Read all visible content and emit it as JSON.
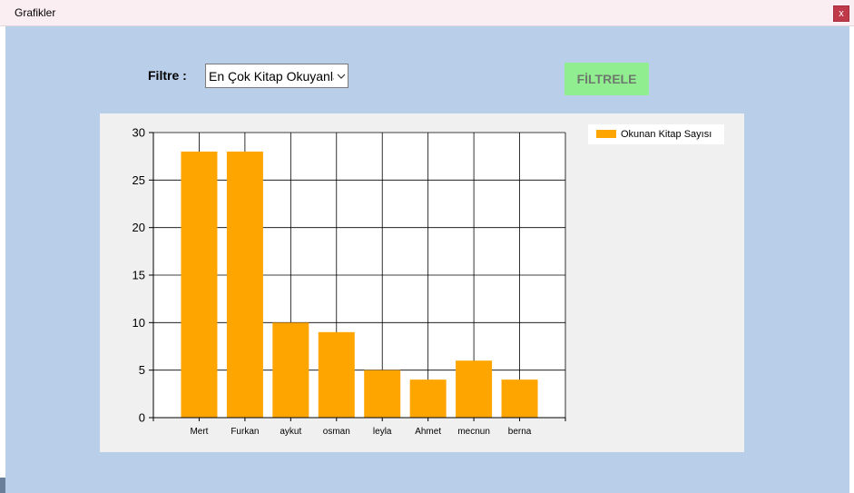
{
  "window": {
    "title": "Grafikler",
    "close_label": "x"
  },
  "filter": {
    "label": "Filtre :",
    "selected": "En Çok Kitap Okuyanlar",
    "button_label": "FİLTRELE"
  },
  "colors": {
    "bar": "#ffa500",
    "client_bg": "#b9cfe9",
    "button_bg": "#90ee90"
  },
  "chart_data": {
    "type": "bar",
    "categories": [
      "Mert",
      "Furkan",
      "aykut",
      "osman",
      "leyla",
      "Ahmet",
      "mecnun",
      "berna"
    ],
    "series": [
      {
        "name": "Okunan Kitap Sayısı",
        "values": [
          28,
          28,
          10,
          9,
          5,
          4,
          6,
          4
        ]
      }
    ],
    "ylim": [
      0,
      30
    ],
    "yticks": [
      0,
      5,
      10,
      15,
      20,
      25,
      30
    ],
    "grid": true,
    "legend": "top-right"
  }
}
